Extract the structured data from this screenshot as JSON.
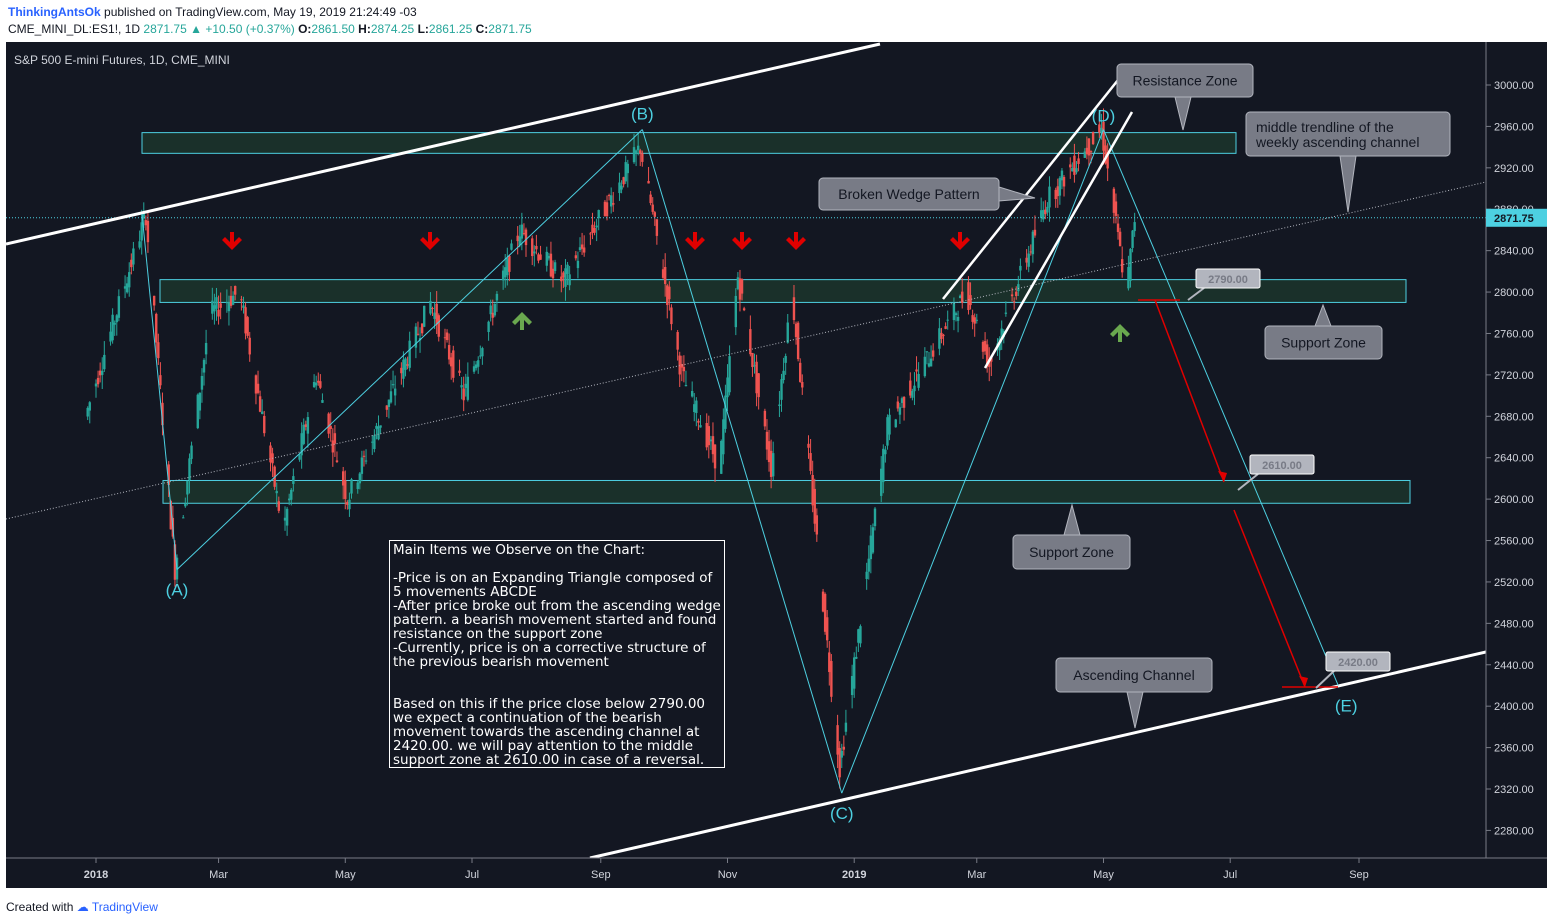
{
  "header": {
    "author": "ThinkingAntsOk",
    "published": "published on TradingView.com, May 19, 2019 21:24:49 -03",
    "symbol": "CME_MINI_DL:ES1!, 1D",
    "last": "2871.75",
    "change": "▲ +10.50 (+0.37%)",
    "o_label": "O:",
    "o": "2861.50",
    "h_label": "H:",
    "h": "2874.25",
    "l_label": "L:",
    "l": "2861.25",
    "c_label": "C:",
    "c": "2871.75"
  },
  "footer": {
    "created": "Created with",
    "brand": "TradingView"
  },
  "chart_data": {
    "type": "candlestick",
    "title": "S&P 500 E-mini Futures, 1D, CME_MINI",
    "y_ticks": [
      "3000.00",
      "2960.00",
      "2920.00",
      "2880.00",
      "2840.00",
      "2800.00",
      "2760.00",
      "2720.00",
      "2680.00",
      "2640.00",
      "2600.00",
      "2560.00",
      "2520.00",
      "2480.00",
      "2440.00",
      "2400.00",
      "2360.00",
      "2320.00",
      "2280.00"
    ],
    "ylim": [
      2245,
      3025
    ],
    "x_ticks": [
      "2018",
      "Mar",
      "May",
      "Jul",
      "Sep",
      "Nov",
      "2019",
      "Mar",
      "May",
      "Jul",
      "Sep"
    ],
    "last_price_label": "2871.75",
    "points": [
      {
        "label": "(A)",
        "date": "2018-02-09",
        "value": 2532
      },
      {
        "label": "(B)",
        "date": "2018-09-21",
        "value": 2957
      },
      {
        "label": "(C)",
        "date": "2018-12-26",
        "value": 2316
      },
      {
        "label": "(D)",
        "date": "2019-05-01",
        "value": 2957
      },
      {
        "label": "(E)",
        "date": "2019-08-22",
        "value": 2420
      }
    ],
    "zones": [
      {
        "name": "Resistance Zone",
        "from": 2934,
        "to": 2954
      },
      {
        "name": "Support Zone",
        "from": 2790,
        "to": 2812
      },
      {
        "name": "Support Zone",
        "from": 2596,
        "to": 2618
      }
    ],
    "price_tags": [
      "2790.00",
      "2610.00",
      "2420.00"
    ],
    "callouts": [
      "Resistance Zone",
      "middle trendline of the weekly ascending channel",
      "Broken Wedge Pattern",
      "Support Zone",
      "Support Zone",
      "Ascending Channel"
    ],
    "notes": {
      "heading": "Main Items we Observe on the Chart:",
      "items": [
        "-Price is on an Expanding Triangle composed of 5 movements ABCDE",
        "-After price broke out from the ascending wedge pattern. a bearish movement started and found resistance on the support zone",
        "-Currently, price is on a corrective structure of the previous bearish movement"
      ],
      "conclusion": "Based on this if the price close below 2790.00 we expect a continuation of the bearish movement towards the ascending channel at 2420.00. we will pay attention to the middle support zone at 2610.00 in case of a reversal."
    },
    "colors": {
      "background": "#131722",
      "up": "#26a69a",
      "down": "#ef5350",
      "zone": "#1e3a2e",
      "zone_border": "#4dd0e1",
      "pattern": "#4dd0e1",
      "channel": "#ffffff",
      "arrow_down": "#e00000",
      "arrow_up": "#6aa84f"
    }
  }
}
